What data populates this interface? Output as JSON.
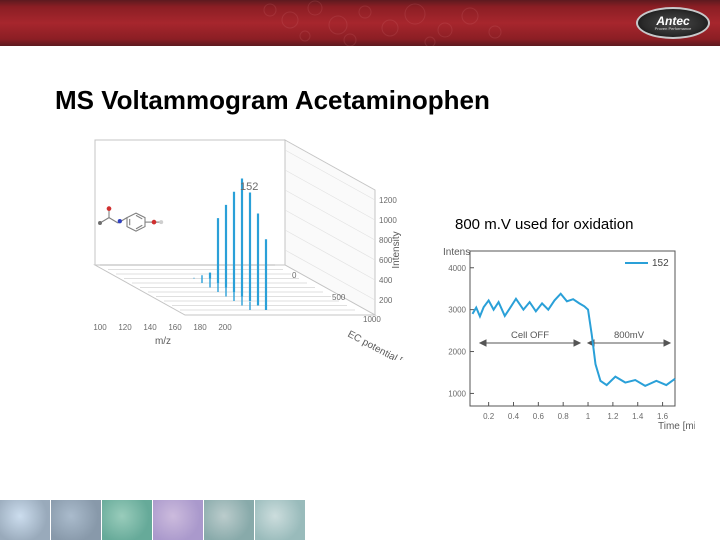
{
  "header": {
    "logo_text": "Antec",
    "logo_subtext": "Proven Performance"
  },
  "title": "MS Voltammogram Acetaminophen",
  "annotation": "800 m.V used for oxidation",
  "plot3d": {
    "type": "3d-bar-spectra",
    "peak_label": "152",
    "x_axis": {
      "label": "m/z",
      "ticks": [
        100,
        120,
        140,
        160,
        180,
        200
      ]
    },
    "y_axis": {
      "label": "EC potential [mV]",
      "ticks": [
        0,
        500,
        1000
      ]
    },
    "z_axis": {
      "label": "Intensity",
      "ticks": [
        200,
        400,
        600,
        800,
        1000,
        1200
      ]
    },
    "peak_color": "#2aa0d8",
    "baseline_color": "#808080",
    "wall_color": "#ffffff",
    "wall_border": "#bfbfbf",
    "molecule": {
      "atom_color_C": "#6d6d6d",
      "atom_color_O": "#d03030",
      "atom_color_N": "#3040c0",
      "atom_color_H": "#cfcfcf",
      "bond_color": "#808080"
    },
    "series_heights_rel": [
      0.0,
      0.0,
      0.0,
      0.05,
      0.55,
      0.7,
      0.85,
      1.0,
      0.92,
      0.78,
      0.6
    ],
    "label_fontsize": 10,
    "tick_fontsize": 8
  },
  "plot2d": {
    "type": "line",
    "ylabel": "Intens.",
    "xlabel": "Time [min]",
    "x_ticks": [
      0.2,
      0.4,
      0.6,
      0.8,
      1.0,
      1.2,
      1.4,
      1.6
    ],
    "y_ticks": [
      1000,
      2000,
      3000,
      4000
    ],
    "ylim": [
      700,
      4400
    ],
    "xlim": [
      0.05,
      1.7
    ],
    "legend_label": "152",
    "line_color": "#2aa0d8",
    "line_width": 2,
    "region_label_left": "Cell OFF",
    "region_label_right": "800mV",
    "region_arrow_color": "#555555",
    "region_label_fontsize": 10,
    "axis_color": "#555555",
    "background_color": "#ffffff",
    "data": [
      [
        0.07,
        2900
      ],
      [
        0.1,
        3050
      ],
      [
        0.13,
        2840
      ],
      [
        0.16,
        3060
      ],
      [
        0.2,
        3220
      ],
      [
        0.24,
        3000
      ],
      [
        0.28,
        3180
      ],
      [
        0.33,
        2850
      ],
      [
        0.37,
        3030
      ],
      [
        0.42,
        3260
      ],
      [
        0.48,
        3000
      ],
      [
        0.53,
        3180
      ],
      [
        0.58,
        2960
      ],
      [
        0.63,
        3150
      ],
      [
        0.68,
        3000
      ],
      [
        0.73,
        3220
      ],
      [
        0.78,
        3380
      ],
      [
        0.83,
        3200
      ],
      [
        0.88,
        3250
      ],
      [
        0.93,
        3150
      ],
      [
        0.97,
        3080
      ],
      [
        1.0,
        3000
      ],
      [
        1.03,
        2400
      ],
      [
        1.06,
        1700
      ],
      [
        1.1,
        1300
      ],
      [
        1.15,
        1200
      ],
      [
        1.22,
        1400
      ],
      [
        1.3,
        1260
      ],
      [
        1.38,
        1320
      ],
      [
        1.46,
        1180
      ],
      [
        1.55,
        1300
      ],
      [
        1.63,
        1200
      ],
      [
        1.7,
        1350
      ]
    ]
  },
  "colors": {
    "band_dark": "#5d1a1f",
    "band_mid": "#a7262d"
  },
  "footer": {
    "cells": 6
  }
}
